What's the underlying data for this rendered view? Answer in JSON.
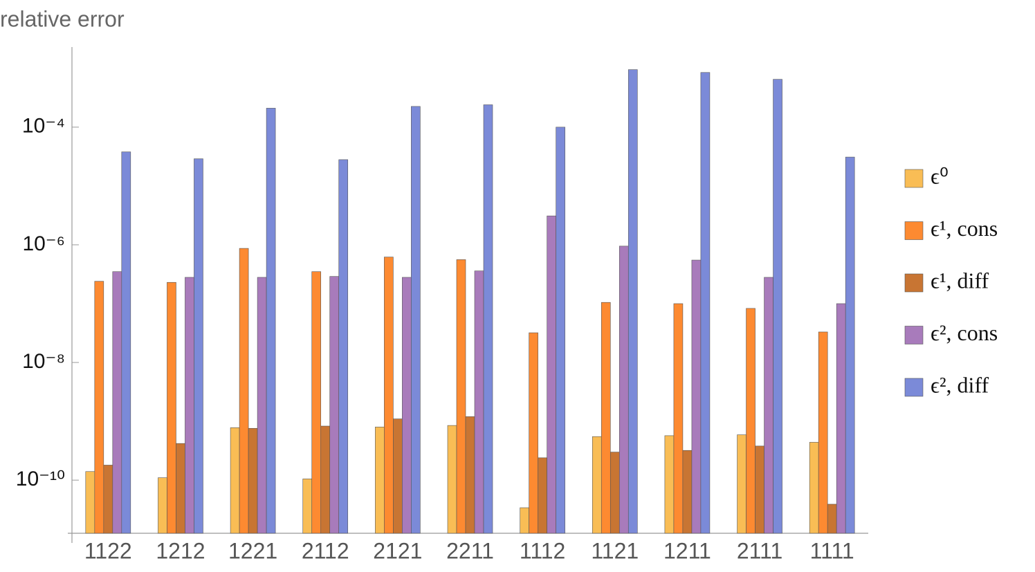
{
  "chart_data": {
    "type": "bar",
    "y_label": "relative error",
    "log_scale": true,
    "categories": [
      "1122",
      "1212",
      "1221",
      "2112",
      "2121",
      "2211",
      "1112",
      "1121",
      "1211",
      "2111",
      "1111"
    ],
    "series": [
      {
        "name": "ϵ⁰",
        "color": "#f9bd55",
        "values": [
          1.4e-10,
          1.1e-10,
          7.8e-10,
          1.05e-10,
          8e-10,
          8.5e-10,
          3.4e-11,
          5.5e-10,
          5.7e-10,
          5.9e-10,
          4.4e-10
        ]
      },
      {
        "name": "ϵ¹, cons",
        "color": "#fd8a31",
        "values": [
          2.4e-07,
          2.3e-07,
          8.7e-07,
          3.5e-07,
          6.2e-07,
          5.6e-07,
          3.2e-08,
          1.05e-07,
          1e-07,
          8.3e-08,
          3.3e-08
        ]
      },
      {
        "name": "ϵ¹, diff",
        "color": "#c87533",
        "values": [
          1.8e-10,
          4.2e-10,
          7.6e-10,
          8.3e-10,
          1.1e-09,
          1.2e-09,
          2.4e-10,
          3e-10,
          3.2e-10,
          3.8e-10,
          3.9e-11
        ]
      },
      {
        "name": "ϵ², cons",
        "color": "#a87bbb",
        "values": [
          3.5e-07,
          2.8e-07,
          2.8e-07,
          2.9e-07,
          2.8e-07,
          3.6e-07,
          3.1e-06,
          9.5e-07,
          5.5e-07,
          2.8e-07,
          1e-07
        ]
      },
      {
        "name": "ϵ², diff",
        "color": "#7b8ad8",
        "values": [
          3.8e-05,
          2.9e-05,
          0.00021,
          2.8e-05,
          0.000225,
          0.00024,
          0.0001,
          0.00095,
          0.00085,
          0.00065,
          3.1e-05
        ]
      }
    ],
    "ylim": [
      1.25e-11,
      0.0023
    ],
    "yticks": [
      {
        "value": 1e-10,
        "label": "10⁻¹⁰"
      },
      {
        "value": 1e-08,
        "label": "10⁻⁸"
      },
      {
        "value": 1e-06,
        "label": "10⁻⁶"
      },
      {
        "value": 0.0001,
        "label": "10⁻⁴"
      }
    ],
    "legend": "right"
  }
}
